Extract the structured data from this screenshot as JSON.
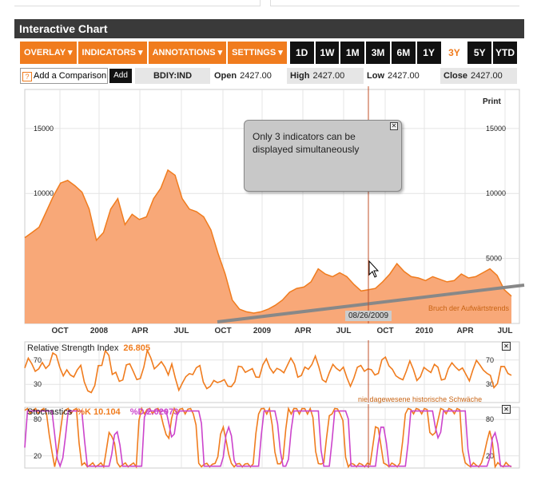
{
  "window": {
    "title": "Interactive Chart"
  },
  "toolbar": {
    "menus": [
      "OVERLAY",
      "INDICATORS",
      "ANNOTATIONS",
      "SETTINGS"
    ],
    "ranges": [
      "1D",
      "1W",
      "1M",
      "3M",
      "6M",
      "1Y",
      "3Y",
      "5Y",
      "YTD"
    ],
    "active_range": "3Y"
  },
  "infobar": {
    "add_comparison": "Add a Comparison",
    "add_button": "Add",
    "ticker": "BDIY:IND",
    "open_label": "Open",
    "open_value": "2427.00",
    "high_label": "High",
    "high_value": "2427.00",
    "low_label": "Low",
    "low_value": "2427.00",
    "close_label": "Close",
    "close_value": "2427.00"
  },
  "main_chart": {
    "print_label": "Print",
    "popup_text": "Only 3 indicators can be displayed simultaneously",
    "crosshair_date": "08/26/2009",
    "trend_annotation": "Bruch der Aufwärtstrends"
  },
  "rsi_panel": {
    "title": "Relative Strength Index",
    "value": "26.805",
    "annotation": "nie dagewesene historische Schwäche"
  },
  "stoch_panel": {
    "title": "Stochastics",
    "k_label": "%K 10.104",
    "d_label": "%D 2.02073"
  },
  "colors": {
    "accent": "#f07c1e",
    "area": "#f8a878",
    "dark": "#111111",
    "magenta": "#cc44cc"
  },
  "chart_data": {
    "type": "area",
    "title": "BDIY:IND",
    "x_labels": [
      "OCT",
      "2008",
      "APR",
      "JUL",
      "OCT",
      "2009",
      "APR",
      "JUL",
      "OCT",
      "2010",
      "APR",
      "JUL"
    ],
    "y_ticks": [
      5000,
      10000,
      15000
    ],
    "ylim": [
      0,
      18000
    ],
    "values": [
      6600,
      7000,
      7400,
      8600,
      9800,
      10800,
      11000,
      10600,
      10100,
      8800,
      6400,
      7000,
      8800,
      9600,
      7600,
      8400,
      8000,
      8200,
      9600,
      10400,
      11800,
      11400,
      9600,
      8800,
      8600,
      8200,
      7200,
      5400,
      3800,
      1800,
      1100,
      900,
      800,
      900,
      1100,
      1400,
      1800,
      2400,
      2700,
      2800,
      3200,
      4200,
      3800,
      3600,
      3900,
      3600,
      3000,
      2500,
      2600,
      2700,
      3200,
      3800,
      4600,
      4000,
      3600,
      3500,
      3300,
      3600,
      3400,
      3200,
      3300,
      3800,
      3500,
      3600,
      3900,
      4200,
      3700,
      2600,
      2100
    ],
    "rsi": {
      "ylim": [
        0,
        100
      ],
      "y_ticks": [
        30,
        70
      ]
    },
    "stochastics": {
      "ylim": [
        0,
        100
      ],
      "y_ticks": [
        20,
        80
      ]
    }
  }
}
